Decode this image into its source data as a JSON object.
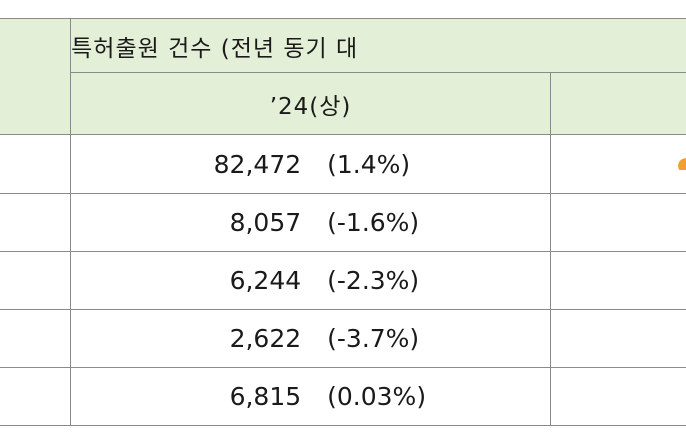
{
  "table": {
    "header_title": "특허출원 건수 (전년 동기 대",
    "col_24h1": "’24(상)",
    "rows": [
      {
        "count": "82,472",
        "change": "(1.4%)"
      },
      {
        "count": "8,057",
        "change": "(-1.6%)"
      },
      {
        "count": "6,244",
        "change": "(-2.3%)"
      },
      {
        "count": "2,622",
        "change": "(-3.7%)"
      },
      {
        "count": "6,815",
        "change": "(0.03%)"
      }
    ]
  },
  "colors": {
    "header_bg": "#e4efd7",
    "border": "#8a8a8a",
    "orange_mark": "#f0a030"
  }
}
